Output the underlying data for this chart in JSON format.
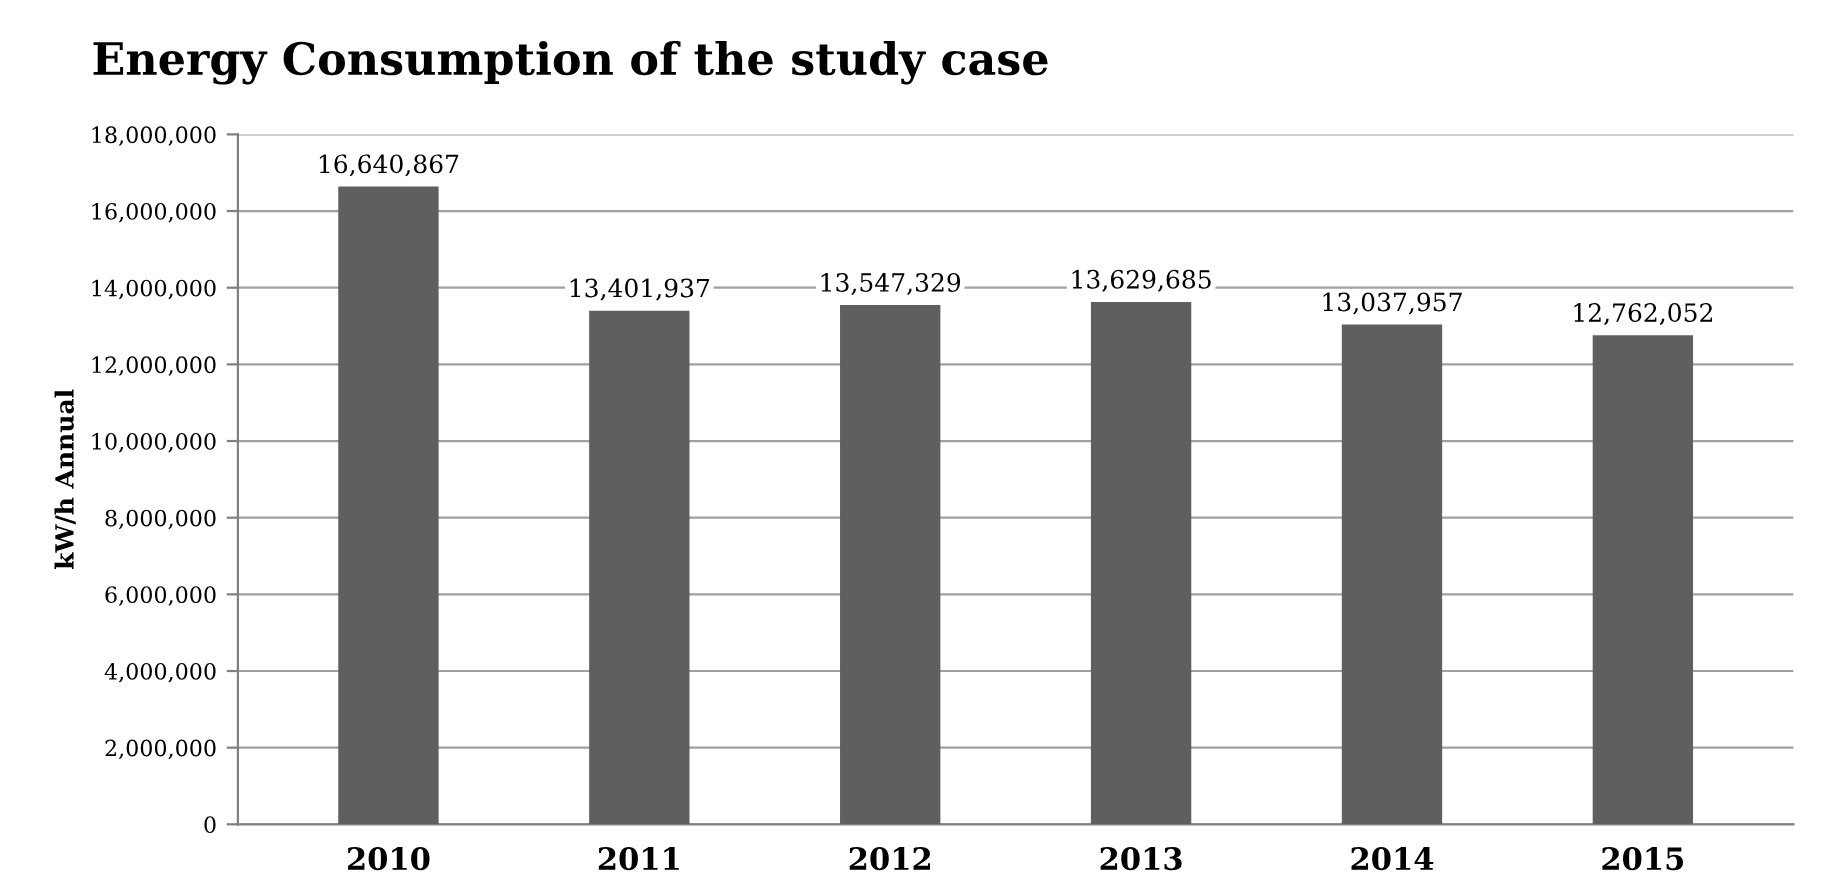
{
  "chart_data": {
    "type": "bar",
    "title": "Energy Consumption of the study case",
    "ylabel": "kW/h Annual",
    "categories": [
      "2010",
      "2011",
      "2012",
      "2013",
      "2014",
      "2015"
    ],
    "values": [
      16640867,
      13401937,
      13547329,
      13629685,
      13037957,
      12762052
    ],
    "value_labels": [
      "16,640,867",
      "13,401,937",
      "13,547,329",
      "13,629,685",
      "13,037,957",
      "12,762,052"
    ],
    "color": "#5f5f5f",
    "ylim": [
      0,
      18000000
    ],
    "yticks": [
      0,
      {
        "value": 2000000,
        "label": "2,000,000"
      },
      {
        "value": 4000000,
        "label": "4,000,000"
      },
      {
        "value": 6000000,
        "label": "6,000,000"
      },
      {
        "value": 8000000,
        "label": "8,000,000"
      },
      {
        "value": 10000000,
        "label": "10,000,000"
      },
      {
        "value": 12000000,
        "label": "12,000,000"
      },
      {
        "value": 14000000,
        "label": "14,000,000"
      },
      {
        "value": 16000000,
        "label": "16,000,000"
      },
      {
        "value": 18000000,
        "label": "18,000,000"
      }
    ],
    "grid": "y"
  }
}
